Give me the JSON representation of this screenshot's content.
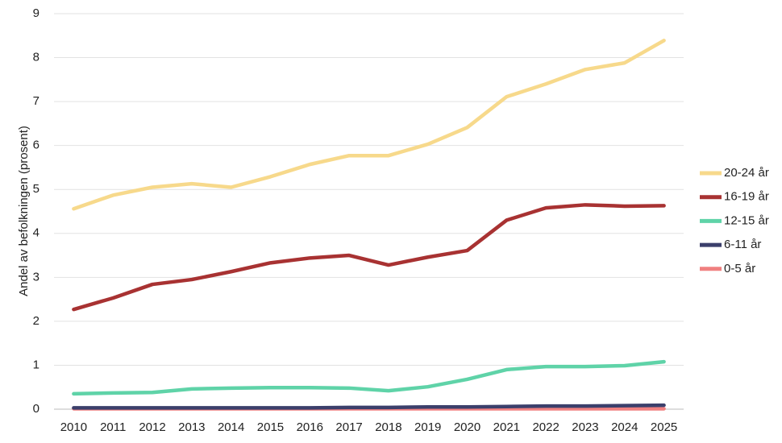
{
  "chart_data": {
    "type": "line",
    "ylabel": "Andel av befolkningen (prosent)",
    "categories": [
      "2010",
      "2011",
      "2012",
      "2013",
      "2014",
      "2015",
      "2016",
      "2017",
      "2018",
      "2019",
      "2020",
      "2021",
      "2022",
      "2023",
      "2024",
      "2025"
    ],
    "series": [
      {
        "name": "20-24 år",
        "color": "#f7d98b",
        "values": [
          4.56,
          4.87,
          5.05,
          5.13,
          5.05,
          5.29,
          5.57,
          5.77,
          5.77,
          6.03,
          6.41,
          7.11,
          7.4,
          7.73,
          7.88,
          8.39
        ]
      },
      {
        "name": "16-19 år",
        "color": "#a83232",
        "values": [
          2.27,
          2.53,
          2.84,
          2.95,
          3.13,
          3.33,
          3.44,
          3.5,
          3.28,
          3.46,
          3.61,
          4.3,
          4.58,
          4.65,
          4.62,
          4.63
        ]
      },
      {
        "name": "12-15 år",
        "color": "#5fd3a8",
        "values": [
          0.35,
          0.37,
          0.38,
          0.46,
          0.48,
          0.49,
          0.49,
          0.48,
          0.42,
          0.51,
          0.68,
          0.9,
          0.97,
          0.97,
          0.99,
          1.08
        ]
      },
      {
        "name": "6-11 år",
        "color": "#3b3f6b",
        "values": [
          0.03,
          0.03,
          0.03,
          0.03,
          0.03,
          0.03,
          0.03,
          0.04,
          0.04,
          0.05,
          0.05,
          0.06,
          0.07,
          0.07,
          0.08,
          0.09
        ]
      },
      {
        "name": "0-5 år",
        "color": "#f08080",
        "values": [
          0.01,
          0.01,
          0.01,
          0.01,
          0.01,
          0.01,
          0.01,
          0.01,
          0.01,
          0.01,
          0.01,
          0.01,
          0.01,
          0.01,
          0.01,
          0.01
        ]
      }
    ],
    "ylim": [
      0,
      9
    ],
    "yticks": [
      0,
      1,
      2,
      3,
      4,
      5,
      6,
      7,
      8,
      9
    ],
    "grid": true,
    "legend": "right"
  }
}
